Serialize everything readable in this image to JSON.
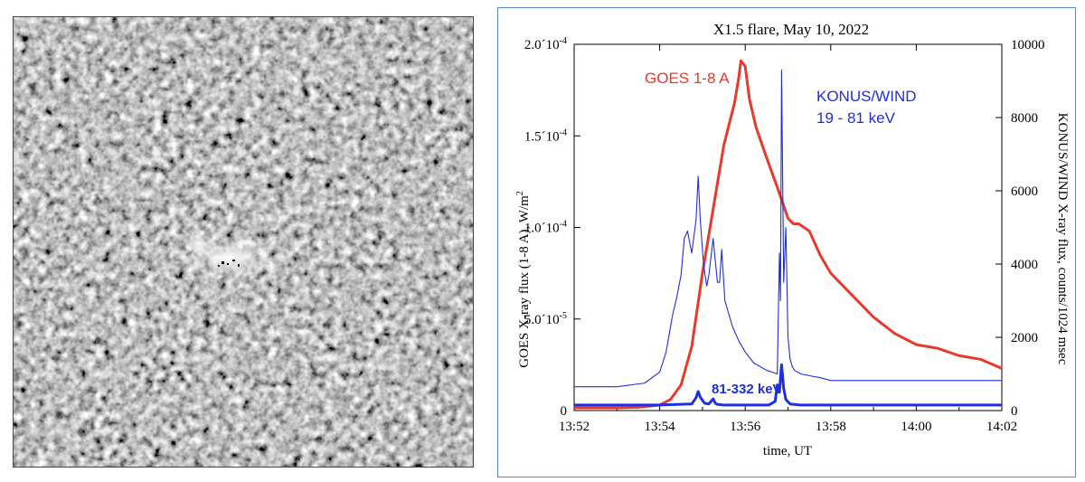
{
  "left_image": {
    "name": "solar-magnetogram-image",
    "colors": {
      "base": "#8a8a8a",
      "light": "#d8d8d8",
      "dark": "#3c3c3c",
      "spot_white": "#ffffff",
      "spot_black": "#000000"
    }
  },
  "chart_data": {
    "type": "line",
    "title": "X1.5 flare, May 10, 2022",
    "xlabel": "time, UT",
    "ylabel_left_text": "GOES X-ray flux (1-8 A), W/m",
    "ylabel_left_sup": "2",
    "ylabel_right": "KONUS/WIND X-ray flux, counts/1024 msec",
    "x_range_min": [
      13.866667,
      14.033333
    ],
    "xlim": [
      13.866667,
      14.033333
    ],
    "x_ticks": [
      {
        "value": 13.866667,
        "label": "13:52"
      },
      {
        "value": 13.9,
        "label": "13:54"
      },
      {
        "value": 13.933333,
        "label": "13:56"
      },
      {
        "value": 13.966667,
        "label": "13:58"
      },
      {
        "value": 14.0,
        "label": "14:00"
      },
      {
        "value": 14.033333,
        "label": "14:02"
      }
    ],
    "ylim_left": [
      0,
      0.0002
    ],
    "y_left_ticks": [
      {
        "value": 0,
        "mant": "0",
        "exp": ""
      },
      {
        "value": 5e-05,
        "mant": "5.0´10",
        "exp": "-5"
      },
      {
        "value": 0.0001,
        "mant": "1.0´10",
        "exp": "-4"
      },
      {
        "value": 0.00015,
        "mant": "1.5´10",
        "exp": "-4"
      },
      {
        "value": 0.0002,
        "mant": "2.0´10",
        "exp": "-4"
      }
    ],
    "ylim_right": [
      0,
      10000
    ],
    "y_right_ticks": [
      {
        "value": 0,
        "label": "0"
      },
      {
        "value": 2000,
        "label": "2000"
      },
      {
        "value": 4000,
        "label": "4000"
      },
      {
        "value": 6000,
        "label": "6000"
      },
      {
        "value": 8000,
        "label": "8000"
      },
      {
        "value": 10000,
        "label": "10000"
      }
    ],
    "series": [
      {
        "name": "GOES 1-8 A",
        "axis": "left",
        "color": "#e8392b",
        "label_line1": "GOES 1-8 A",
        "x_min": [
          13.866667,
          13.883333,
          13.891667,
          13.9,
          13.904167,
          13.908333,
          13.9125,
          13.916667,
          13.920833,
          13.925,
          13.929167,
          13.930833,
          13.931667,
          13.933333,
          13.935,
          13.9375,
          13.941667,
          13.945833,
          13.95,
          13.952083,
          13.954167,
          13.958333,
          13.9625,
          13.966667,
          13.975,
          13.983333,
          13.991667,
          14.0,
          14.008333,
          14.016667,
          14.025,
          14.033333
        ],
        "values": [
          1.5e-06,
          1.5e-06,
          1.8e-06,
          3e-06,
          6e-06,
          1.4e-05,
          3.5e-05,
          7.5e-05,
          0.00011,
          0.000145,
          0.000168,
          0.000182,
          0.000191,
          0.000188,
          0.00017,
          0.000155,
          0.000138,
          0.000122,
          0.000105,
          0.000102,
          0.000102,
          9.8e-05,
          8.5e-05,
          7.5e-05,
          6.3e-05,
          5.1e-05,
          4.2e-05,
          3.6e-05,
          3.4e-05,
          3e-05,
          2.8e-05,
          2.3e-05
        ]
      },
      {
        "name": "KONUS/WIND 19 - 81 keV",
        "axis": "right",
        "color": "#1f2ee0",
        "label_line1": "KONUS/WIND",
        "label_line2": "19 - 81 keV",
        "x_min": [
          13.866667,
          13.883333,
          13.894167,
          13.9,
          13.9025,
          13.905,
          13.906667,
          13.908333,
          13.909583,
          13.910833,
          13.9125,
          13.914167,
          13.915,
          13.915833,
          13.917083,
          13.918333,
          13.919167,
          13.920833,
          13.9225,
          13.923333,
          13.924167,
          13.925417,
          13.926667,
          13.928333,
          13.930833,
          13.933333,
          13.936667,
          13.941667,
          13.945833,
          13.946667,
          13.947083,
          13.9475,
          13.948333,
          13.949167,
          13.95,
          13.950833,
          13.951667,
          13.9525,
          13.955,
          13.958333,
          13.9625,
          13.966667,
          13.983333,
          14.033333
        ],
        "values": [
          650,
          650,
          750,
          1050,
          1600,
          2600,
          3100,
          3700,
          4700,
          4900,
          4300,
          5200,
          6400,
          5200,
          4000,
          3400,
          3700,
          4700,
          3500,
          3500,
          4400,
          3000,
          2700,
          2300,
          1900,
          1600,
          1300,
          1100,
          1000,
          4300,
          3000,
          9300,
          3500,
          5000,
          2000,
          1400,
          1200,
          1100,
          1000,
          950,
          900,
          820,
          820,
          820
        ]
      },
      {
        "name": "81-332 keV",
        "axis": "right",
        "color": "#1f2ee0",
        "label_line1": "81-332 keV",
        "x_min": [
          13.866667,
          13.9,
          13.9125,
          13.914167,
          13.915,
          13.915833,
          13.9175,
          13.919167,
          13.920833,
          13.921667,
          13.9225,
          13.925,
          13.9425,
          13.945,
          13.945833,
          13.946667,
          13.9475,
          13.948333,
          13.949167,
          13.950833,
          13.955,
          14.033333
        ],
        "values": [
          150,
          150,
          180,
          350,
          520,
          360,
          200,
          180,
          320,
          200,
          170,
          150,
          150,
          250,
          700,
          500,
          1250,
          600,
          300,
          180,
          150,
          150
        ]
      }
    ]
  }
}
